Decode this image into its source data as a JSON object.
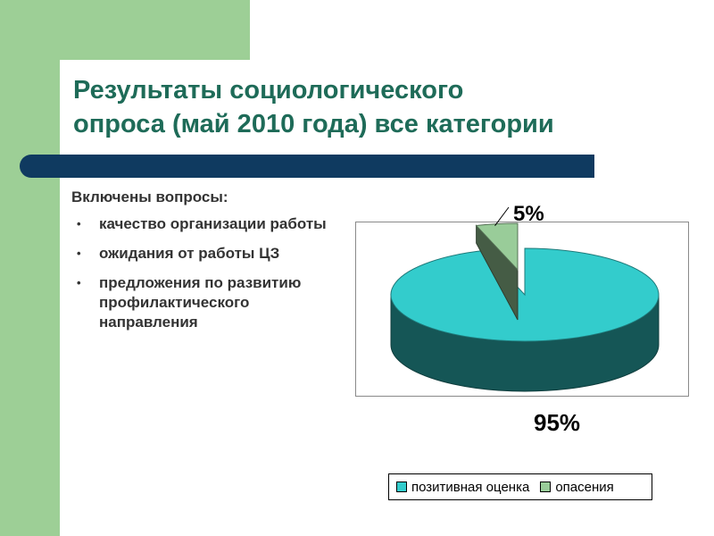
{
  "slide": {
    "title_lines": [
      "Результаты социологического",
      "опроса (май 2010 года) все категории"
    ],
    "body_heading": "Включены вопросы:",
    "bullets": [
      "качество организации работы",
      "ожидания от работы ЦЗ",
      "предложения по развитию профилактического направления"
    ],
    "colors": {
      "accent_green": "#9dcf96",
      "title": "#1e6b58",
      "bar": "#0f3a60"
    }
  },
  "chart_data": {
    "type": "pie",
    "title": "",
    "labels": [
      "позитивная оценка",
      "опасения"
    ],
    "values": [
      95,
      5
    ],
    "data_labels": [
      "95%",
      "5%"
    ],
    "colors": [
      "#33cccc",
      "#99cc99"
    ],
    "three_d": true,
    "exploded_slice": "опасения",
    "legend_position": "bottom"
  }
}
